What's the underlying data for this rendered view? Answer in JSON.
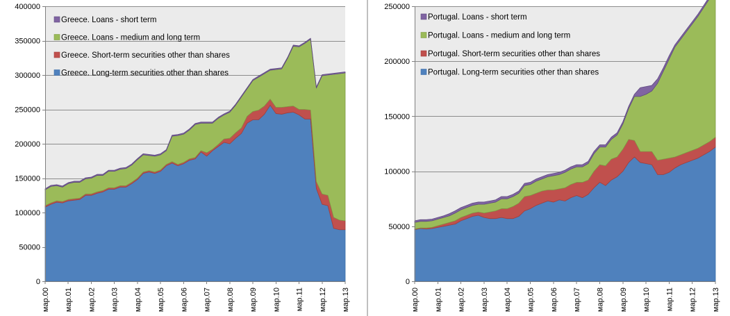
{
  "chart_data": [
    {
      "type": "area",
      "stacked": true,
      "ylim": [
        0,
        400000
      ],
      "yticks": [
        0,
        50000,
        100000,
        150000,
        200000,
        250000,
        300000,
        350000,
        400000
      ],
      "x_ticks": [
        "мар.00",
        "мар.01",
        "мар.02",
        "мар.03",
        "мар.04",
        "мар.05",
        "мар.06",
        "мар.07",
        "мар.08",
        "мар.09",
        "мар.10",
        "мар.11",
        "мар.12",
        "мар.13"
      ],
      "x_quarters": 53,
      "grid": true,
      "legend_position": "top-left",
      "legend_order": [
        3,
        2,
        1,
        0
      ],
      "series": [
        {
          "name": "Greece. Long-term securities other than shares",
          "color": "#4f81bd",
          "edge": "#3c6ea8",
          "values": [
            108000,
            112000,
            115000,
            114000,
            117000,
            118000,
            119000,
            125000,
            125000,
            128000,
            130000,
            134000,
            134000,
            137000,
            137000,
            142000,
            148000,
            157000,
            159000,
            157000,
            160000,
            168000,
            172000,
            168000,
            171000,
            176000,
            178000,
            188000,
            182000,
            190000,
            196000,
            202000,
            200000,
            208000,
            215000,
            230000,
            235000,
            235000,
            243000,
            256000,
            244000,
            243000,
            245000,
            246000,
            242000,
            236000,
            236000,
            135000,
            112000,
            110000,
            77000,
            75000,
            75000
          ]
        },
        {
          "name": "Greece. Short-term securities other than shares",
          "color": "#c0504d",
          "edge": "#a33e3b",
          "values": [
            2000,
            2000,
            2000,
            2000,
            2000,
            2000,
            2000,
            2000,
            2000,
            2000,
            2000,
            2000,
            2000,
            2000,
            2000,
            2000,
            2000,
            2000,
            2000,
            2000,
            2000,
            2000,
            2000,
            2000,
            2000,
            2000,
            2000,
            2000,
            5000,
            2000,
            3000,
            5000,
            8000,
            8000,
            8000,
            10000,
            12000,
            14000,
            12000,
            9000,
            9000,
            10000,
            9000,
            9000,
            8000,
            14000,
            13000,
            10000,
            15000,
            15000,
            16000,
            14000,
            13000
          ]
        },
        {
          "name": "Greece. Loans - medium and long term",
          "color": "#9bbb59",
          "edge": "#7f9c44",
          "values": [
            23000,
            24000,
            22000,
            21000,
            23000,
            24000,
            23000,
            22000,
            23000,
            24000,
            22000,
            24000,
            24000,
            24000,
            25000,
            25000,
            27000,
            25000,
            22000,
            23000,
            22000,
            20000,
            37000,
            42000,
            41000,
            42000,
            48000,
            40000,
            43000,
            38000,
            38000,
            35000,
            38000,
            40000,
            45000,
            40000,
            45000,
            48000,
            47000,
            42000,
            55000,
            56000,
            70000,
            87000,
            91000,
            96000,
            103000,
            136000,
            172000,
            175000,
            208000,
            213000,
            215000
          ]
        },
        {
          "name": "Greece. Loans - short term",
          "color": "#8064a2",
          "edge": "#5f4b80",
          "values": [
            1500,
            1500,
            1500,
            1500,
            1500,
            1500,
            1500,
            1500,
            1500,
            1500,
            1500,
            1500,
            1500,
            1500,
            1500,
            1500,
            1500,
            1500,
            1500,
            1500,
            1500,
            1500,
            1500,
            1500,
            1500,
            1500,
            1500,
            1500,
            1500,
            1500,
            1500,
            1500,
            1500,
            1500,
            1500,
            1500,
            1500,
            1500,
            1500,
            1500,
            1500,
            1500,
            1500,
            1500,
            1500,
            1500,
            1500,
            1500,
            1500,
            1500,
            1500,
            1500,
            1500
          ]
        }
      ]
    },
    {
      "type": "area",
      "stacked": true,
      "ylim": [
        0,
        250000
      ],
      "yticks": [
        0,
        50000,
        100000,
        150000,
        200000,
        250000
      ],
      "x_ticks": [
        "мар.00",
        "мар.01",
        "мар.02",
        "мар.03",
        "мар.04",
        "мар.05",
        "мар.06",
        "мар.07",
        "мар.08",
        "мар.09",
        "мар.10",
        "мар.11",
        "мар.12",
        "мар.13"
      ],
      "x_quarters": 53,
      "grid": true,
      "legend_position": "top-left",
      "legend_order": [
        3,
        2,
        1,
        0
      ],
      "series": [
        {
          "name": "Portugal. Long-term securities other than shares",
          "color": "#4f81bd",
          "edge": "#3c6ea8",
          "values": [
            47000,
            48000,
            47500,
            48000,
            49000,
            50000,
            51000,
            52000,
            55000,
            57000,
            59000,
            60000,
            58000,
            57000,
            57000,
            58000,
            57000,
            57000,
            59000,
            64000,
            66000,
            69000,
            71000,
            73000,
            72000,
            74000,
            73000,
            76000,
            78000,
            76000,
            79000,
            85000,
            90000,
            87000,
            92000,
            95000,
            100000,
            108000,
            113000,
            108000,
            107000,
            106000,
            97000,
            97000,
            99000,
            103000,
            106000,
            108000,
            110000,
            112000,
            115000,
            118000,
            122000
          ]
        },
        {
          "name": "Portugal. Short-term securities other than shares",
          "color": "#c0504d",
          "edge": "#a33e3b",
          "values": [
            500,
            500,
            1000,
            1000,
            1500,
            2000,
            2500,
            3000,
            3000,
            3000,
            3000,
            3000,
            4000,
            6000,
            7000,
            8000,
            9000,
            11000,
            12000,
            13000,
            12000,
            11000,
            11000,
            10000,
            11000,
            10000,
            12000,
            12000,
            12000,
            14000,
            13000,
            15000,
            16000,
            18000,
            19000,
            18000,
            20000,
            21000,
            15000,
            10000,
            11000,
            12000,
            13000,
            14000,
            13000,
            10000,
            9000,
            9000,
            9000,
            9000,
            9000,
            9000,
            9000
          ]
        },
        {
          "name": "Portugal. Loans - medium and long term",
          "color": "#9bbb59",
          "edge": "#7f9c44",
          "values": [
            6000,
            6000,
            6000,
            6000,
            6000,
            6000,
            6000,
            7000,
            7000,
            7000,
            7000,
            7000,
            8000,
            8000,
            8000,
            9000,
            9000,
            9000,
            9000,
            10000,
            10000,
            11000,
            11000,
            12000,
            13000,
            13000,
            14000,
            14000,
            14000,
            14000,
            15000,
            16000,
            16000,
            17000,
            18000,
            20000,
            23000,
            28000,
            40000,
            50000,
            52000,
            55000,
            70000,
            80000,
            90000,
            100000,
            105000,
            110000,
            115000,
            120000,
            125000,
            130000,
            135000
          ]
        },
        {
          "name": "Portugal. Loans - short term",
          "color": "#8064a2",
          "edge": "#5f4b80",
          "values": [
            1500,
            1500,
            1500,
            1500,
            1500,
            1500,
            2000,
            2000,
            2000,
            2000,
            2000,
            2000,
            2000,
            2000,
            2000,
            2000,
            2000,
            2000,
            2000,
            2000,
            2000,
            2000,
            2000,
            2000,
            2000,
            2000,
            2000,
            2000,
            2000,
            2000,
            2000,
            2000,
            2000,
            2000,
            2000,
            2000,
            2000,
            2000,
            2000,
            8000,
            7000,
            5000,
            4000,
            3000,
            3000,
            2000,
            2000,
            2000,
            2000,
            2000,
            2000,
            2000,
            2000
          ]
        }
      ]
    }
  ]
}
